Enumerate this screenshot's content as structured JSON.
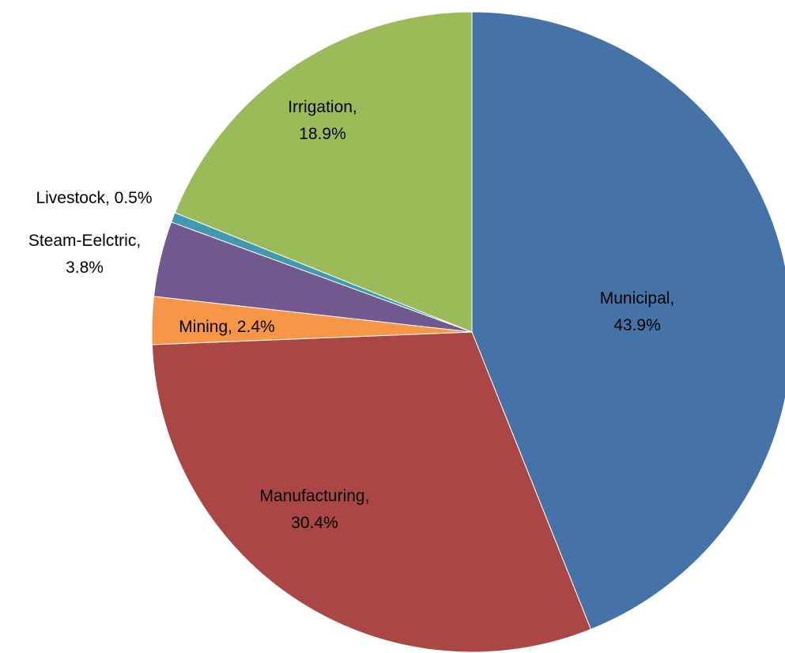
{
  "chart_data": {
    "type": "pie",
    "title": "",
    "slices": [
      {
        "name": "Municipal",
        "value": 43.9,
        "label_line1": "Municipal,",
        "label_line2": "43.9%",
        "color": "#4572A7"
      },
      {
        "name": "Manufacturing",
        "value": 30.4,
        "label_line1": "Manufacturing,",
        "label_line2": "30.4%",
        "color": "#AA4643"
      },
      {
        "name": "Mining",
        "value": 2.4,
        "label_line1": "Mining, 2.4%",
        "label_line2": "",
        "color": "#F79646"
      },
      {
        "name": "Steam-Eelctric",
        "value": 3.8,
        "label_line1": "Steam-Eelctric,",
        "label_line2": "3.8%",
        "color": "#71588F"
      },
      {
        "name": "Livestock",
        "value": 0.5,
        "label_line1": "Livestock, 0.5%",
        "label_line2": "",
        "color": "#4198AF"
      },
      {
        "name": "Irrigation",
        "value": 18.9,
        "label_line1": "Irrigation,",
        "label_line2": "18.9%",
        "color": "#9BBB59"
      }
    ],
    "legend": "none"
  }
}
